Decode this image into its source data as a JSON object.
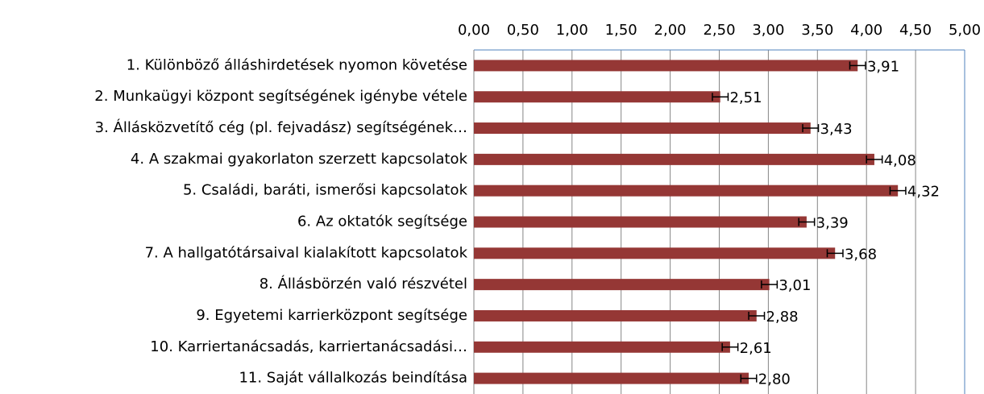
{
  "chart_data": {
    "type": "bar",
    "orientation": "horizontal",
    "categories": [
      "1. Különböző álláshirdetések nyomon követése",
      "2. Munkaügyi központ segítségének igénybe vétele",
      "3. Állásközvetítő cég (pl. fejvadász) segítségének…",
      "4. A szakmai gyakorlaton szerzett kapcsolatok",
      "5. Családi, baráti, ismerősi kapcsolatok",
      "6. Az oktatók segítsége",
      "7. A hallgatótársaival kialakított kapcsolatok",
      "8. Állásbörzén való részvétel",
      "9. Egyetemi karrierközpont segítsége",
      "10. Karriertanácsadás, karriertanácsadási…",
      "11. Saját vállalkozás beindítása"
    ],
    "values": [
      3.91,
      2.51,
      3.43,
      4.08,
      4.32,
      3.39,
      3.68,
      3.01,
      2.88,
      2.61,
      2.8
    ],
    "value_labels": [
      "3,91",
      "2,51",
      "3,43",
      "4,08",
      "4,32",
      "3,39",
      "3,68",
      "3,01",
      "2,88",
      "2,61",
      "2,80"
    ],
    "errors": [
      0.08,
      0.08,
      0.08,
      0.08,
      0.08,
      0.08,
      0.08,
      0.08,
      0.08,
      0.08,
      0.08
    ],
    "color": "#953735",
    "xlim": [
      0,
      5
    ],
    "xticks": [
      {
        "value": 0,
        "label": "0,00"
      },
      {
        "value": 0.5,
        "label": "0,50"
      },
      {
        "value": 1,
        "label": "1,00"
      },
      {
        "value": 1.5,
        "label": "1,50"
      },
      {
        "value": 2,
        "label": "2,00"
      },
      {
        "value": 2.5,
        "label": "2,50"
      },
      {
        "value": 3,
        "label": "3,00"
      },
      {
        "value": 3.5,
        "label": "3,50"
      },
      {
        "value": 4,
        "label": "4,00"
      },
      {
        "value": 4.5,
        "label": "4,50"
      },
      {
        "value": 5,
        "label": "5,00"
      }
    ],
    "grid": true
  }
}
